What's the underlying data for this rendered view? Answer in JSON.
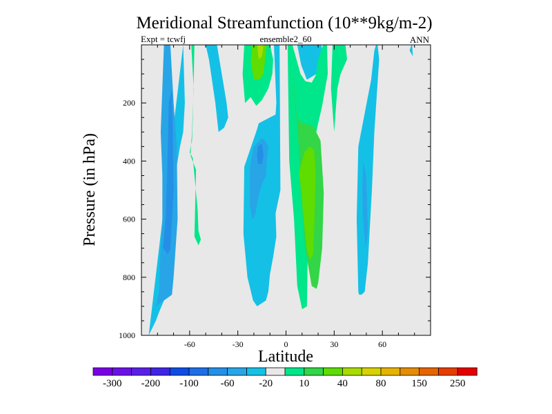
{
  "chart_data": {
    "type": "heatmap",
    "title": "Meridional Streamfunction (10**9kg/m-2)",
    "subtitle_left": "Expt = tcwfj",
    "subtitle_center": "ensemble2_60",
    "subtitle_right": "ANN",
    "xlabel": "Latitude",
    "ylabel": "Pressure (in hPa)",
    "xlim": [
      -90,
      90
    ],
    "ylim": [
      1000,
      0
    ],
    "xticks": [
      {
        "value": -60,
        "label": "-60"
      },
      {
        "value": -30,
        "label": "-30"
      },
      {
        "value": 0,
        "label": "0"
      },
      {
        "value": 30,
        "label": "30"
      },
      {
        "value": 60,
        "label": "60"
      }
    ],
    "yticks": [
      {
        "value": 200,
        "label": "200"
      },
      {
        "value": 400,
        "label": "400"
      },
      {
        "value": 600,
        "label": "600"
      },
      {
        "value": 800,
        "label": "800"
      },
      {
        "value": 1000,
        "label": "1000"
      }
    ],
    "colorbar": {
      "colors": [
        "#7a00e6",
        "#6a12e6",
        "#5a1fe6",
        "#4024e6",
        "#0f4ce6",
        "#1e6ee6",
        "#238fe6",
        "#28a5e6",
        "#15c0e6",
        "#e8e8e8",
        "#00e68a",
        "#32d646",
        "#5fdc00",
        "#a8dc00",
        "#d8d200",
        "#e6b400",
        "#e68c00",
        "#e66400",
        "#e63c00",
        "#e60000"
      ],
      "labels": [
        {
          "index": 1,
          "label": "-300"
        },
        {
          "index": 3,
          "label": "-200"
        },
        {
          "index": 5,
          "label": "-100"
        },
        {
          "index": 7,
          "label": "-60"
        },
        {
          "index": 9,
          "label": "-20"
        },
        {
          "index": 11,
          "label": "10"
        },
        {
          "index": 13,
          "label": "40"
        },
        {
          "index": 15,
          "label": "80"
        },
        {
          "index": 17,
          "label": "150"
        },
        {
          "index": 19,
          "label": "250"
        }
      ]
    },
    "cells": [
      {
        "name": "sh-polar-cell",
        "color": "#15c0e6",
        "lat": [
          -85.5,
          -81,
          -79,
          -76,
          -71,
          -69,
          -66,
          -64,
          -63,
          -63.5,
          -64
        ],
        "p": [
          1000,
          950,
          920,
          880,
          700,
          450,
          350,
          300,
          200,
          100,
          0
        ]
      },
      {
        "name": "sh-polar-cell-core",
        "color": "#28a5e6",
        "lat": [
          -81,
          -79,
          -78.5,
          -77,
          -77,
          -78,
          -76,
          -72,
          -70,
          -68,
          -67.5,
          -70,
          -71
        ],
        "p": [
          900,
          850,
          750,
          600,
          450,
          300,
          0,
          0,
          200,
          350,
          600,
          800,
          860
        ]
      },
      {
        "name": "sh-polar-cell-inner",
        "color": "#238fe6",
        "lat": [
          -76.5,
          -75,
          -74,
          -73,
          -71,
          -70.5,
          -70,
          -72,
          -73.5
        ],
        "p": [
          700,
          600,
          450,
          200,
          150,
          300,
          500,
          700,
          720
        ]
      },
      {
        "name": "sh-polar-narrow-band",
        "color": "#00e68a",
        "lat": [
          -59.5,
          -58.5,
          -57.5,
          -59,
          -57,
          -58,
          -58.5,
          -60,
          -58,
          -57,
          -55,
          -54.5,
          -53,
          -54.5,
          -57,
          -56
        ],
        "p": [
          380,
          300,
          150,
          0,
          0,
          250,
          330,
          370,
          390,
          450,
          570,
          640,
          670,
          690,
          660,
          430
        ]
      },
      {
        "name": "sh-upper-cell",
        "color": "#15c0e6",
        "lat": [
          -42,
          -44,
          -48,
          -50,
          -43,
          -40,
          -37,
          -36,
          -38.5
        ],
        "p": [
          300,
          200,
          50,
          0,
          0,
          100,
          200,
          250,
          285
        ]
      },
      {
        "name": "sh-upper-green",
        "color": "#00e68a",
        "lat": [
          -25.5,
          -27,
          -26,
          -10,
          -8,
          -8.5,
          -11,
          -15,
          -18.5,
          -22
        ],
        "p": [
          200,
          100,
          0,
          0,
          50,
          100,
          150,
          190,
          210,
          180
        ]
      },
      {
        "name": "sh-upper-green-core",
        "color": "#5fdc00",
        "lat": [
          -20,
          -22,
          -21,
          -12,
          -13,
          -14,
          -16.5
        ],
        "p": [
          120,
          60,
          0,
          0,
          50,
          100,
          120
        ]
      },
      {
        "name": "sh-upper-yellow",
        "color": "#a8dc00",
        "lat": [
          -17,
          -18,
          -14,
          -15
        ],
        "p": [
          50,
          0,
          0,
          40
        ]
      },
      {
        "name": "sh-hadley-cell",
        "color": "#15c0e6",
        "lat": [
          -24,
          -26.5,
          -26,
          -18,
          -17,
          -6.5,
          -6,
          -7.5,
          -4,
          -3.5,
          -6.5,
          -6,
          -8,
          -10,
          -11,
          -12.5,
          -18,
          -20.5
        ],
        "p": [
          800,
          650,
          420,
          290,
          270,
          240,
          200,
          0,
          0,
          500,
          580,
          660,
          730,
          790,
          850,
          880,
          900,
          880
        ]
      },
      {
        "name": "sh-hadley-core",
        "color": "#28a5e6",
        "lat": [
          -21,
          -22.5,
          -22.5,
          -20,
          -15,
          -13,
          -11,
          -12,
          -12.5,
          -15,
          -17,
          -19,
          -20.5
        ],
        "p": [
          600,
          550,
          420,
          350,
          320,
          330,
          350,
          400,
          450,
          480,
          520,
          580,
          600
        ]
      },
      {
        "name": "sh-hadley-inner",
        "color": "#238fe6",
        "lat": [
          -17.5,
          -18,
          -17.5,
          -15,
          -14,
          -15
        ],
        "p": [
          410,
          380,
          350,
          340,
          380,
          410
        ]
      },
      {
        "name": "tropical-blue-cap",
        "color": "#15c0e6",
        "lat": [
          7,
          9.5,
          13,
          19,
          23,
          22,
          17
        ],
        "p": [
          0,
          70,
          120,
          100,
          50,
          0,
          0
        ]
      },
      {
        "name": "nh-hadley-cell",
        "color": "#00e68a",
        "lat": [
          1,
          4,
          9,
          12,
          16,
          18.5,
          20,
          23,
          25.5,
          26,
          22.5,
          20,
          17,
          14,
          13,
          10,
          7,
          5,
          2
        ],
        "p": [
          0,
          0,
          100,
          125,
          130,
          105,
          50,
          0,
          0,
          100,
          210,
          270,
          350,
          550,
          900,
          910,
          830,
          600,
          400
        ]
      },
      {
        "name": "nh-hadley-core",
        "color": "#32d646",
        "lat": [
          4.5,
          6,
          10.5,
          17,
          21.5,
          22.5,
          23.5,
          22.5,
          20,
          19,
          16,
          12,
          10.5,
          9,
          8
        ],
        "p": [
          100,
          250,
          270,
          280,
          330,
          420,
          510,
          700,
          820,
          840,
          830,
          700,
          600,
          500,
          350
        ]
      },
      {
        "name": "nh-hadley-inner",
        "color": "#5fdc00",
        "lat": [
          8,
          11.5,
          14.5,
          17.5,
          18.5,
          18,
          17,
          15,
          13,
          11,
          9.5
        ],
        "p": [
          440,
          370,
          350,
          360,
          440,
          560,
          720,
          740,
          710,
          600,
          500
        ]
      },
      {
        "name": "nh-upper-green",
        "color": "#00e68a",
        "lat": [
          30,
          28,
          29,
          37,
          38,
          34,
          32,
          31
        ],
        "p": [
          300,
          150,
          0,
          0,
          50,
          100,
          150,
          220
        ]
      },
      {
        "name": "nh-ferrel-cell",
        "color": "#15c0e6",
        "lat": [
          45,
          44,
          45,
          53,
          55,
          56,
          57,
          58,
          55,
          53.5,
          51,
          49,
          47,
          45.5
        ],
        "p": [
          850,
          600,
          350,
          120,
          20,
          0,
          0,
          50,
          300,
          500,
          750,
          850,
          860,
          860
        ]
      },
      {
        "name": "nh-ferrel-core",
        "color": "#28a5e6",
        "lat": [
          48,
          47.5,
          48,
          50,
          51,
          49.5
        ],
        "p": [
          600,
          500,
          400,
          450,
          650,
          700
        ]
      },
      {
        "name": "nh-polar-sliver",
        "color": "#15c0e6",
        "lat": [
          78,
          77,
          79,
          78.5
        ],
        "p": [
          0,
          20,
          40,
          0
        ]
      }
    ]
  }
}
